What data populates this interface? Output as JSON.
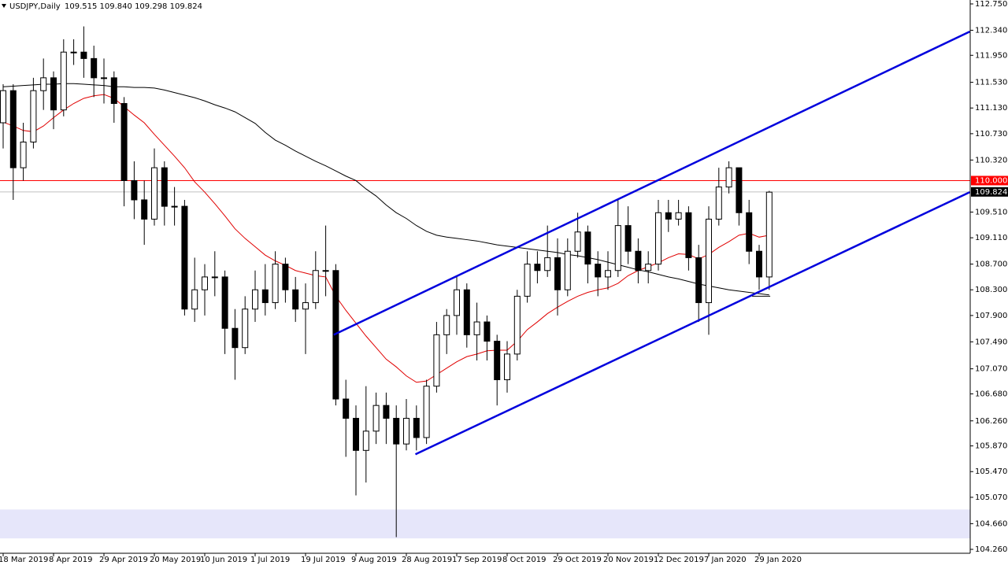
{
  "chart_data": {
    "type": "candlestick",
    "title": "USDJPY,Daily",
    "quote": "109.515 109.840 109.298 109.824",
    "categories": [
      "18 Mar 2019",
      null,
      null,
      null,
      null,
      "8 Apr 2019",
      null,
      null,
      null,
      null,
      "29 Apr 2019",
      null,
      null,
      null,
      null,
      "20 May 2019",
      null,
      null,
      null,
      null,
      "10 Jun 2019",
      null,
      null,
      null,
      null,
      "1 Jul 2019",
      null,
      null,
      null,
      null,
      "19 Jul 2019",
      null,
      null,
      null,
      null,
      "9 Aug 2019",
      null,
      null,
      null,
      null,
      "28 Aug 2019",
      null,
      null,
      null,
      null,
      "17 Sep 2019",
      null,
      null,
      null,
      null,
      "8 Oct 2019",
      null,
      null,
      null,
      null,
      "29 Oct 2019",
      null,
      null,
      null,
      null,
      "20 Nov 2019",
      null,
      null,
      null,
      null,
      "12 Dec 2019",
      null,
      null,
      null,
      null,
      "7 Jan 2020",
      null,
      null,
      null,
      null,
      "29 Jan 2020",
      null
    ],
    "open": [
      110.9,
      111.4,
      110.2,
      110.6,
      111.4,
      111.6,
      111.1,
      112.0,
      112.0,
      111.9,
      111.6,
      111.6,
      111.2,
      110.0,
      109.7,
      109.4,
      110.2,
      109.6,
      109.6,
      108.0,
      108.3,
      108.5,
      108.5,
      107.7,
      107.4,
      108.0,
      108.3,
      108.1,
      108.7,
      108.3,
      108.0,
      108.1,
      108.6,
      108.6,
      106.6,
      106.3,
      105.8,
      106.1,
      106.5,
      106.3,
      105.9,
      106.3,
      106.0,
      106.8,
      107.6,
      107.9,
      108.3,
      107.6,
      107.8,
      107.5,
      106.9,
      107.3,
      108.2,
      108.7,
      108.6,
      108.8,
      108.3,
      108.9,
      109.2,
      108.7,
      108.5,
      108.6,
      109.3,
      108.9,
      108.6,
      108.7,
      109.5,
      109.4,
      109.5,
      108.8,
      108.1,
      109.4,
      109.9,
      110.2,
      109.5,
      108.9,
      108.5
    ],
    "high": [
      111.5,
      111.5,
      110.9,
      111.6,
      111.9,
      111.7,
      112.2,
      112.2,
      112.4,
      112.1,
      111.9,
      111.7,
      111.3,
      110.3,
      110.0,
      110.5,
      110.3,
      109.9,
      109.7,
      108.8,
      108.7,
      108.9,
      108.6,
      108.0,
      108.2,
      108.6,
      108.7,
      108.9,
      108.8,
      108.5,
      108.4,
      108.9,
      109.3,
      108.7,
      106.9,
      106.5,
      106.8,
      106.7,
      106.7,
      106.5,
      106.6,
      106.5,
      106.9,
      107.8,
      108.0,
      108.5,
      108.4,
      108.1,
      107.9,
      107.6,
      107.5,
      108.3,
      108.9,
      108.9,
      109.3,
      109.1,
      109.1,
      109.5,
      109.3,
      108.9,
      108.9,
      109.7,
      109.6,
      109.1,
      108.9,
      109.7,
      109.7,
      109.7,
      109.6,
      109.0,
      109.6,
      110.2,
      110.3,
      110.2,
      109.7,
      109.0,
      109.84
    ],
    "low": [
      110.5,
      109.7,
      110.0,
      110.5,
      111.1,
      110.8,
      111.0,
      111.8,
      111.6,
      111.3,
      111.2,
      110.9,
      109.6,
      109.4,
      109.0,
      109.3,
      109.3,
      109.3,
      107.9,
      107.8,
      107.9,
      108.2,
      107.3,
      106.9,
      107.3,
      107.8,
      107.9,
      108.0,
      108.1,
      107.8,
      107.3,
      108.0,
      108.2,
      106.5,
      105.7,
      105.1,
      105.3,
      105.9,
      105.9,
      104.45,
      105.8,
      105.8,
      105.9,
      106.7,
      107.3,
      107.6,
      107.4,
      107.2,
      107.2,
      106.5,
      106.7,
      107.2,
      108.1,
      108.4,
      108.5,
      107.9,
      108.2,
      108.8,
      108.4,
      108.2,
      108.3,
      108.5,
      108.7,
      108.4,
      108.4,
      108.6,
      109.2,
      109.3,
      108.6,
      107.8,
      107.6,
      109.3,
      109.8,
      109.3,
      108.7,
      108.3,
      108.3
    ],
    "close": [
      111.4,
      110.2,
      110.6,
      111.4,
      111.6,
      111.1,
      112.0,
      112.0,
      111.9,
      111.6,
      111.6,
      111.2,
      110.0,
      109.7,
      109.4,
      110.2,
      109.6,
      109.6,
      108.0,
      108.3,
      108.5,
      108.5,
      107.7,
      107.4,
      108.0,
      108.3,
      108.1,
      108.7,
      108.3,
      108.0,
      108.1,
      108.6,
      108.6,
      106.6,
      106.3,
      105.8,
      106.1,
      106.5,
      106.3,
      105.9,
      106.3,
      106.0,
      106.8,
      107.6,
      107.9,
      108.3,
      107.6,
      107.8,
      107.5,
      106.9,
      107.3,
      108.2,
      108.7,
      108.6,
      108.8,
      108.3,
      108.9,
      109.2,
      108.7,
      108.5,
      108.6,
      109.3,
      108.9,
      108.6,
      108.7,
      109.5,
      109.4,
      109.5,
      108.8,
      108.1,
      109.4,
      109.9,
      110.2,
      109.5,
      108.9,
      108.5,
      109.82
    ],
    "moving_averages": [
      {
        "color": "#000000",
        "values": [
          111.46,
          111.47,
          111.48,
          111.49,
          111.5,
          111.5,
          111.51,
          111.51,
          111.5,
          111.49,
          111.48,
          111.46,
          111.46,
          111.45,
          111.45,
          111.44,
          111.41,
          111.37,
          111.33,
          111.29,
          111.24,
          111.18,
          111.13,
          111.07,
          110.98,
          110.89,
          110.75,
          110.63,
          110.55,
          110.46,
          110.38,
          110.3,
          110.23,
          110.15,
          110.07,
          110.0,
          109.87,
          109.76,
          109.62,
          109.5,
          109.41,
          109.3,
          109.21,
          109.15,
          109.12,
          109.1,
          109.08,
          109.06,
          109.03,
          109.0,
          108.98,
          108.96,
          108.94,
          108.92,
          108.9,
          108.88,
          108.85,
          108.83,
          108.8,
          108.77,
          108.73,
          108.69,
          108.65,
          108.61,
          108.58,
          108.54,
          108.5,
          108.47,
          108.43,
          108.39,
          108.36,
          108.33,
          108.3,
          108.28,
          108.26,
          108.24,
          108.22
        ]
      },
      {
        "color": "#e00000",
        "values": [
          110.91,
          110.85,
          110.78,
          110.76,
          110.85,
          110.98,
          111.1,
          111.2,
          111.28,
          111.32,
          111.34,
          111.28,
          111.15,
          111.02,
          110.9,
          110.72,
          110.55,
          110.38,
          110.2,
          109.98,
          109.82,
          109.64,
          109.45,
          109.25,
          109.1,
          108.97,
          108.84,
          108.75,
          108.68,
          108.6,
          108.56,
          108.52,
          108.5,
          108.2,
          107.98,
          107.78,
          107.58,
          107.4,
          107.22,
          107.1,
          106.96,
          106.86,
          106.88,
          106.98,
          107.08,
          107.18,
          107.26,
          107.3,
          107.35,
          107.36,
          107.36,
          107.5,
          107.68,
          107.8,
          107.93,
          108.03,
          108.12,
          108.2,
          108.26,
          108.3,
          108.33,
          108.4,
          108.52,
          108.6,
          108.66,
          108.72,
          108.8,
          108.86,
          108.85,
          108.78,
          108.85,
          108.96,
          109.05,
          109.15,
          109.18,
          109.12,
          109.15
        ]
      }
    ],
    "trendlines": [
      {
        "color": "#0000dd",
        "x": [
          32.8,
          95.9
        ],
        "values": [
          107.6,
          112.32
        ]
      },
      {
        "color": "#0000dd",
        "x": [
          40.9,
          95.9
        ],
        "values": [
          105.74,
          109.82
        ]
      },
      {
        "color": "#000000",
        "x": [
          74.3,
          76.1
        ],
        "values": [
          108.2,
          108.2
        ]
      }
    ],
    "price_lines": [
      {
        "value": 110.0,
        "label": "110.000",
        "color": "#ff0000",
        "label_color": "#ff0000"
      },
      {
        "value": 109.824,
        "label": "109.824",
        "color": "#c0c0c0",
        "label_color": "#000000"
      }
    ],
    "zone": {
      "from": 104.43,
      "to": 104.88,
      "color": "#e6e6fa"
    },
    "ylim": [
      104.199,
      112.811
    ],
    "yticks": [
      {
        "value": 112.75,
        "label": "112.750"
      },
      {
        "value": 112.34,
        "label": "112.340"
      },
      {
        "value": 111.95,
        "label": "111.950"
      },
      {
        "value": 111.53,
        "label": "111.530"
      },
      {
        "value": 111.13,
        "label": "111.130"
      },
      {
        "value": 110.73,
        "label": "110.730"
      },
      {
        "value": 110.32,
        "label": "110.320"
      },
      {
        "value": 109.51,
        "label": "109.510"
      },
      {
        "value": 109.11,
        "label": "109.110"
      },
      {
        "value": 108.7,
        "label": "108.700"
      },
      {
        "value": 108.3,
        "label": "108.300"
      },
      {
        "value": 107.9,
        "label": "107.900"
      },
      {
        "value": 107.49,
        "label": "107.490"
      },
      {
        "value": 107.07,
        "label": "107.070"
      },
      {
        "value": 106.68,
        "label": "106.680"
      },
      {
        "value": 106.26,
        "label": "106.260"
      },
      {
        "value": 105.87,
        "label": "105.870"
      },
      {
        "value": 105.47,
        "label": "105.470"
      },
      {
        "value": 105.07,
        "label": "105.070"
      },
      {
        "value": 104.66,
        "label": "104.660"
      },
      {
        "value": 104.26,
        "label": "104.260"
      }
    ],
    "up_color": "#ffffff",
    "down_color": "#000000"
  }
}
